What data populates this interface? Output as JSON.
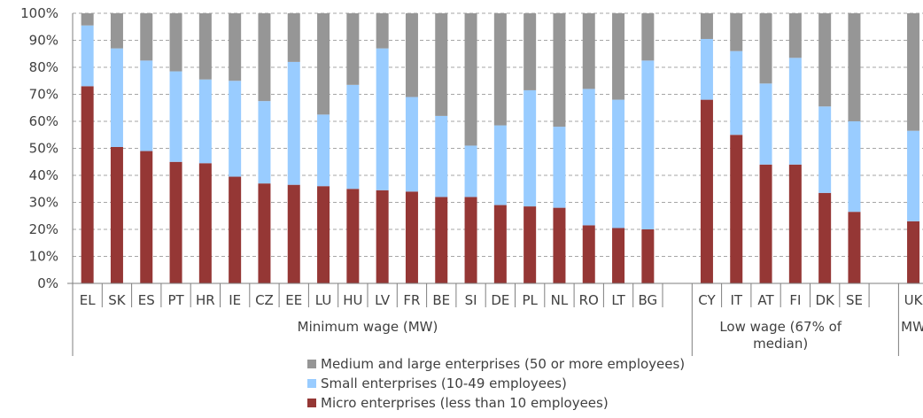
{
  "chart_data": {
    "type": "bar",
    "stacked": true,
    "percent_stacked": true,
    "ylim": [
      0,
      100
    ],
    "yticks": [
      "0%",
      "10%",
      "20%",
      "30%",
      "40%",
      "50%",
      "60%",
      "70%",
      "80%",
      "90%",
      "100%"
    ],
    "grid": "horizontal dashed",
    "legend_position": "bottom",
    "categories": [
      "EL",
      "SK",
      "ES",
      "PT",
      "HR",
      "IE",
      "CZ",
      "EE",
      "LU",
      "HU",
      "LV",
      "FR",
      "BE",
      "SI",
      "DE",
      "PL",
      "NL",
      "RO",
      "LT",
      "BG",
      "",
      "CY",
      "IT",
      "AT",
      "FI",
      "DK",
      "SE",
      "",
      "UK"
    ],
    "groups": [
      {
        "label": "Minimum wage (MW)",
        "categories": [
          "EL",
          "SK",
          "ES",
          "PT",
          "HR",
          "IE",
          "CZ",
          "EE",
          "LU",
          "HU",
          "LV",
          "FR",
          "BE",
          "SI",
          "DE",
          "PL",
          "NL",
          "RO",
          "LT",
          "BG"
        ]
      },
      {
        "label": "Low wage (67% of median)",
        "categories": [
          "CY",
          "IT",
          "AT",
          "FI",
          "DK",
          "SE"
        ]
      },
      {
        "label": "MW",
        "categories": [
          "UK"
        ]
      }
    ],
    "series": [
      {
        "name": "Micro enterprises (less than 10 employees)",
        "color": "#953735",
        "values": [
          73,
          50.5,
          49,
          45,
          44.5,
          39.5,
          37,
          36.5,
          36,
          35,
          34.5,
          34,
          32,
          32,
          29,
          28.5,
          28,
          21.5,
          20.5,
          20,
          null,
          68,
          55,
          44,
          44,
          33.5,
          26.5,
          null,
          23
        ]
      },
      {
        "name": "Small enterprises (10-49 employees)",
        "color": "#99ccff",
        "values": [
          22.5,
          36.5,
          33.5,
          33.5,
          31,
          35.5,
          30.5,
          45.5,
          26.5,
          38.5,
          52.5,
          35,
          30,
          19,
          29.5,
          43,
          30,
          50.5,
          47.5,
          62.5,
          null,
          22.5,
          31,
          30,
          39.5,
          32,
          33.5,
          null,
          33.5
        ]
      },
      {
        "name": "Medium and large enterprises (50 or more employees)",
        "color": "#969696",
        "values": [
          4.5,
          13,
          17.5,
          21.5,
          24.5,
          25,
          32.5,
          18,
          37.5,
          26.5,
          13,
          31,
          38,
          49,
          41.5,
          28.5,
          42,
          28,
          32,
          17.5,
          null,
          9.5,
          14,
          26,
          16.5,
          34.5,
          40,
          null,
          43.5
        ]
      }
    ],
    "legend_order": [
      "Medium and large enterprises (50 or more employees)",
      "Small enterprises (10-49 employees)",
      "Micro enterprises (less than 10 employees)"
    ],
    "group_label_lines": [
      [
        "Minimum wage (MW)"
      ],
      [
        "Low wage (67% of",
        "median)"
      ],
      [
        "MW"
      ]
    ]
  }
}
